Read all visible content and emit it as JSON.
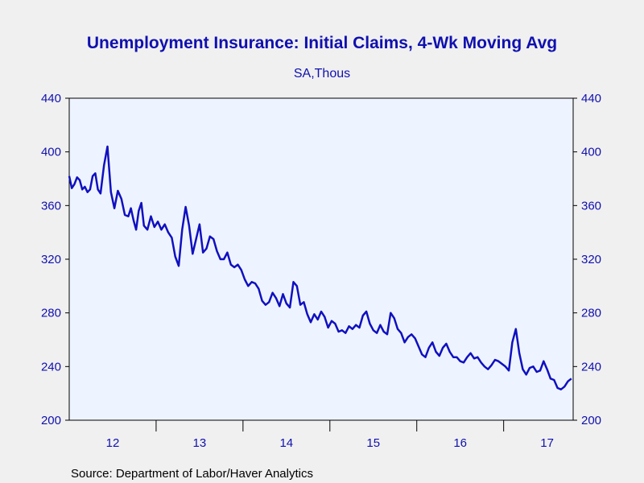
{
  "chart_data": {
    "type": "line",
    "title": "Unemployment Insurance: Initial Claims, 4-Wk Moving Avg",
    "subtitle": "SA,Thous",
    "source": "Source:  Department of Labor/Haver Analytics",
    "xlabel": "",
    "ylabel": "",
    "ylim": [
      200,
      440
    ],
    "y_ticks": [
      200,
      240,
      280,
      320,
      360,
      400,
      440
    ],
    "x_range": [
      2012,
      2017.8
    ],
    "year_boundaries": [
      2013,
      2014,
      2015,
      2016,
      2017
    ],
    "x_tick_labels": [
      {
        "label": "12",
        "year": 2012
      },
      {
        "label": "13",
        "year": 2013
      },
      {
        "label": "14",
        "year": 2014
      },
      {
        "label": "15",
        "year": 2015
      },
      {
        "label": "16",
        "year": 2016
      },
      {
        "label": "17",
        "year": 2017
      }
    ],
    "grid": false,
    "legend": "none",
    "colors": {
      "line": "#1010c0",
      "plot_bg": "#eef4ff",
      "text": "#1010b0",
      "page_bg": "#f0f0f0"
    },
    "series": [
      {
        "x": [
          2012.0,
          2012.03,
          2012.06,
          2012.09,
          2012.12,
          2012.15,
          2012.18,
          2012.21,
          2012.24,
          2012.27,
          2012.3,
          2012.33,
          2012.36,
          2012.4,
          2012.44,
          2012.48,
          2012.52,
          2012.56,
          2012.6,
          2012.64,
          2012.68,
          2012.71,
          2012.74,
          2012.77,
          2012.8,
          2012.83,
          2012.86,
          2012.9,
          2012.94,
          2012.98,
          2013.02,
          2013.06,
          2013.1,
          2013.14,
          2013.18,
          2013.22,
          2013.26,
          2013.3,
          2013.34,
          2013.38,
          2013.42,
          2013.46,
          2013.5,
          2013.54,
          2013.58,
          2013.62,
          2013.66,
          2013.7,
          2013.74,
          2013.78,
          2013.82,
          2013.86,
          2013.9,
          2013.94,
          2013.98,
          2014.02,
          2014.06,
          2014.1,
          2014.14,
          2014.18,
          2014.22,
          2014.26,
          2014.3,
          2014.34,
          2014.38,
          2014.42,
          2014.46,
          2014.5,
          2014.54,
          2014.58,
          2014.62,
          2014.66,
          2014.7,
          2014.74,
          2014.78,
          2014.82,
          2014.86,
          2014.9,
          2014.94,
          2014.98,
          2015.02,
          2015.06,
          2015.1,
          2015.14,
          2015.18,
          2015.22,
          2015.26,
          2015.3,
          2015.34,
          2015.38,
          2015.42,
          2015.46,
          2015.5,
          2015.54,
          2015.58,
          2015.62,
          2015.66,
          2015.7,
          2015.74,
          2015.78,
          2015.82,
          2015.86,
          2015.9,
          2015.94,
          2015.98,
          2016.02,
          2016.06,
          2016.1,
          2016.14,
          2016.18,
          2016.22,
          2016.26,
          2016.3,
          2016.34,
          2016.38,
          2016.42,
          2016.46,
          2016.5,
          2016.54,
          2016.58,
          2016.62,
          2016.66,
          2016.7,
          2016.74,
          2016.78,
          2016.82,
          2016.86,
          2016.9,
          2016.94,
          2016.98,
          2017.02,
          2017.06,
          2017.1,
          2017.14,
          2017.18,
          2017.22,
          2017.26,
          2017.3,
          2017.34,
          2017.38,
          2017.42,
          2017.46,
          2017.5,
          2017.54,
          2017.58,
          2017.62,
          2017.66,
          2017.7,
          2017.74,
          2017.78
        ],
        "values": [
          382,
          373,
          376,
          381,
          379,
          372,
          374,
          370,
          372,
          382,
          384,
          372,
          369,
          390,
          404,
          370,
          358,
          371,
          365,
          353,
          352,
          358,
          349,
          342,
          356,
          362,
          345,
          342,
          352,
          344,
          348,
          342,
          346,
          340,
          336,
          322,
          315,
          342,
          359,
          345,
          324,
          335,
          346,
          325,
          328,
          337,
          335,
          326,
          320,
          320,
          325,
          316,
          314,
          316,
          312,
          305,
          300,
          303,
          302,
          298,
          289,
          286,
          288,
          295,
          291,
          285,
          294,
          287,
          284,
          303,
          300,
          286,
          288,
          279,
          273,
          279,
          275,
          281,
          277,
          269,
          274,
          272,
          266,
          267,
          265,
          270,
          268,
          271,
          269,
          278,
          281,
          272,
          267,
          265,
          271,
          266,
          264,
          280,
          276,
          268,
          265,
          258,
          262,
          264,
          261,
          255,
          249,
          247,
          254,
          258,
          251,
          248,
          254,
          257,
          251,
          247,
          247,
          244,
          243,
          247,
          250,
          246,
          247,
          243,
          240,
          238,
          241,
          245,
          244,
          242,
          240,
          237,
          258,
          268,
          250,
          238,
          234,
          239,
          240,
          236,
          237,
          244,
          238,
          231,
          230,
          224,
          223,
          225,
          229,
          231
        ]
      }
    ]
  }
}
